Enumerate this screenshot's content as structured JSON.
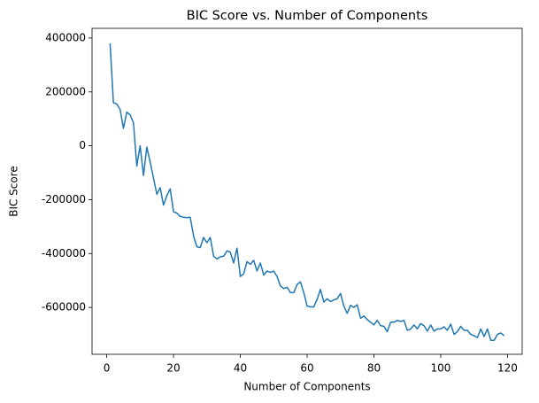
{
  "chart_data": {
    "type": "line",
    "title": "BIC Score vs. Number of Components",
    "x_label": "Number of Components",
    "y_label": "BIC Score",
    "color": "#1f77b4",
    "x": [
      1,
      2,
      3,
      4,
      5,
      6,
      7,
      8,
      9,
      10,
      11,
      12,
      13,
      14,
      15,
      16,
      17,
      18,
      19,
      20,
      21,
      22,
      23,
      24,
      25,
      26,
      27,
      28,
      29,
      30,
      31,
      32,
      33,
      34,
      35,
      36,
      37,
      38,
      39,
      40,
      41,
      42,
      43,
      44,
      45,
      46,
      47,
      48,
      49,
      50,
      51,
      52,
      53,
      54,
      55,
      56,
      57,
      58,
      59,
      60,
      61,
      62,
      63,
      64,
      65,
      66,
      67,
      68,
      69,
      70,
      71,
      72,
      73,
      74,
      75,
      76,
      77,
      78,
      79,
      80,
      81,
      82,
      83,
      84,
      85,
      86,
      87,
      88,
      89,
      90,
      91,
      92,
      93,
      94,
      95,
      96,
      97,
      98,
      99,
      100,
      101,
      102,
      103,
      104,
      105,
      106,
      107,
      108,
      109,
      110,
      111,
      112,
      113,
      114,
      115,
      116,
      117,
      118,
      119
    ],
    "values": [
      380000,
      160000,
      155000,
      135000,
      65000,
      125000,
      115000,
      85000,
      -75000,
      0,
      -110000,
      -5000,
      -60000,
      -120000,
      -180000,
      -155000,
      -220000,
      -185000,
      -160000,
      -245000,
      -250000,
      -262000,
      -265000,
      -267000,
      -265000,
      -335000,
      -375000,
      -378000,
      -340000,
      -360000,
      -340000,
      -410000,
      -420000,
      -412000,
      -410000,
      -390000,
      -395000,
      -435000,
      -380000,
      -485000,
      -475000,
      -430000,
      -440000,
      -425000,
      -465000,
      -435000,
      -480000,
      -465000,
      -470000,
      -465000,
      -485000,
      -520000,
      -530000,
      -525000,
      -545000,
      -545000,
      -515000,
      -505000,
      -545000,
      -595000,
      -598000,
      -598000,
      -570000,
      -533000,
      -580000,
      -568000,
      -578000,
      -572000,
      -568000,
      -548000,
      -595000,
      -622000,
      -592000,
      -600000,
      -590000,
      -640000,
      -632000,
      -645000,
      -655000,
      -665000,
      -648000,
      -668000,
      -670000,
      -690000,
      -655000,
      -655000,
      -648000,
      -652000,
      -648000,
      -685000,
      -680000,
      -665000,
      -680000,
      -660000,
      -668000,
      -688000,
      -665000,
      -688000,
      -680000,
      -680000,
      -672000,
      -685000,
      -662000,
      -700000,
      -690000,
      -670000,
      -685000,
      -685000,
      -700000,
      -705000,
      -712000,
      -680000,
      -708000,
      -680000,
      -722000,
      -722000,
      -700000,
      -695000,
      -705000
    ],
    "xlim": [
      -4.4,
      124.4
    ],
    "ylim": [
      -774000,
      436000
    ],
    "xticks": [
      0,
      20,
      40,
      60,
      80,
      100,
      120
    ],
    "yticks": [
      -600000,
      -400000,
      -200000,
      0,
      200000,
      400000
    ]
  }
}
